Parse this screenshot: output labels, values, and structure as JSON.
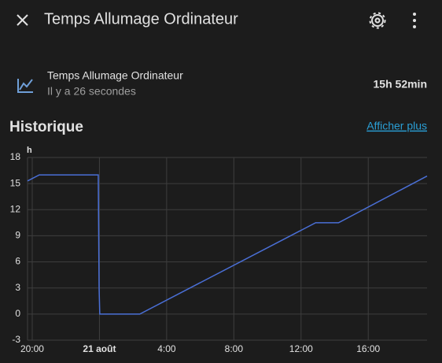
{
  "header": {
    "title": "Temps Allumage Ordinateur"
  },
  "entity": {
    "name": "Temps Allumage Ordinateur",
    "last_changed": "Il y a 26 secondes",
    "state": "15h 52min"
  },
  "history": {
    "title": "Historique",
    "link": "Afficher plus"
  },
  "chart_data": {
    "type": "line",
    "ylabel": "h",
    "color": "#4a6fd6",
    "x": [
      19.72,
      20.42,
      23.93,
      23.98,
      24.02,
      26.4,
      36.87,
      38.23,
      43.5
    ],
    "values": [
      15.3,
      16.0,
      16.0,
      3.0,
      0,
      0,
      10.5,
      10.5,
      15.87
    ],
    "xlim": [
      19.72,
      43.5
    ],
    "xticks": [
      {
        "value": 20,
        "label": "20:00"
      },
      {
        "value": 24,
        "label": "21 août"
      },
      {
        "value": 28,
        "label": "4:00"
      },
      {
        "value": 32,
        "label": "8:00"
      },
      {
        "value": 36,
        "label": "12:00"
      },
      {
        "value": 40,
        "label": "16:00"
      }
    ],
    "ylim": [
      -3,
      18
    ],
    "yticks": [
      -3,
      0,
      3,
      6,
      9,
      12,
      15,
      18
    ],
    "grid": true
  }
}
